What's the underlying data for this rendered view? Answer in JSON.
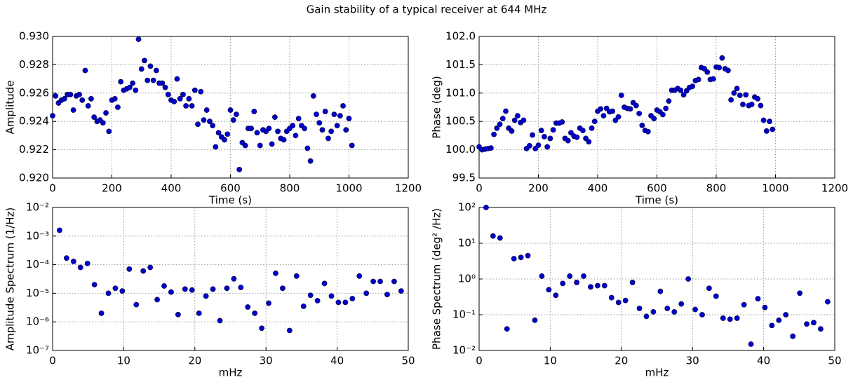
{
  "title": "Gain stability of a typical receiver at 644 MHz",
  "chart_data": [
    {
      "type": "scatter",
      "xlabel": "Time (s)",
      "ylabel": "Amplitude",
      "color": "#0000cc",
      "grid": true,
      "log_y": false,
      "xlim": [
        0,
        1200
      ],
      "xticks": [
        0,
        200,
        400,
        600,
        800,
        1000,
        1200
      ],
      "ylim": [
        0.92,
        0.93
      ],
      "yticks": [
        {
          "value": 0.92,
          "label": "0.920"
        },
        {
          "value": 0.922,
          "label": "0.922"
        },
        {
          "value": 0.924,
          "label": "0.924"
        },
        {
          "value": 0.926,
          "label": "0.926"
        },
        {
          "value": 0.928,
          "label": "0.928"
        },
        {
          "value": 0.93,
          "label": "0.930"
        }
      ],
      "x": [
        0,
        10,
        20,
        30,
        40,
        50,
        60,
        70,
        80,
        90,
        100,
        110,
        120,
        130,
        140,
        150,
        160,
        170,
        180,
        190,
        200,
        210,
        220,
        230,
        240,
        250,
        260,
        270,
        280,
        290,
        300,
        310,
        320,
        330,
        340,
        350,
        360,
        370,
        380,
        390,
        400,
        410,
        420,
        430,
        440,
        450,
        460,
        470,
        480,
        490,
        500,
        510,
        520,
        530,
        540,
        550,
        560,
        570,
        580,
        590,
        600,
        610,
        620,
        630,
        640,
        650,
        660,
        670,
        680,
        690,
        700,
        710,
        720,
        730,
        740,
        750,
        760,
        770,
        780,
        790,
        800,
        810,
        820,
        830,
        840,
        850,
        860,
        870,
        880,
        890,
        900,
        910,
        920,
        930,
        940,
        950,
        960,
        970,
        980,
        990,
        1000,
        1010
      ],
      "values": [
        0.9244,
        0.9258,
        0.9253,
        0.9255,
        0.9256,
        0.9259,
        0.9259,
        0.9248,
        0.9258,
        0.9259,
        0.9255,
        0.9276,
        0.9251,
        0.9256,
        0.9243,
        0.924,
        0.9241,
        0.9239,
        0.9246,
        0.9233,
        0.9255,
        0.9256,
        0.925,
        0.9268,
        0.9262,
        0.9263,
        0.9264,
        0.9267,
        0.9262,
        0.9298,
        0.9277,
        0.9283,
        0.9269,
        0.9279,
        0.9269,
        0.9276,
        0.9267,
        0.9267,
        0.9264,
        0.9259,
        0.9255,
        0.9254,
        0.927,
        0.9256,
        0.9259,
        0.9251,
        0.9256,
        0.9251,
        0.9262,
        0.9238,
        0.9261,
        0.9241,
        0.9248,
        0.924,
        0.9237,
        0.9222,
        0.9232,
        0.9229,
        0.9227,
        0.9231,
        0.9248,
        0.9241,
        0.9245,
        0.9206,
        0.9225,
        0.9223,
        0.9235,
        0.9235,
        0.9247,
        0.9232,
        0.9223,
        0.9234,
        0.9233,
        0.9235,
        0.9224,
        0.9243,
        0.9233,
        0.9228,
        0.9227,
        0.9233,
        0.9235,
        0.9237,
        0.923,
        0.9242,
        0.9237,
        0.9235,
        0.9221,
        0.9212,
        0.9258,
        0.9245,
        0.9239,
        0.9234,
        0.9247,
        0.9228,
        0.9233,
        0.9245,
        0.9237,
        0.9244,
        0.9251,
        0.9234,
        0.9242,
        0.9223
      ]
    },
    {
      "type": "scatter",
      "xlabel": "Time (s)",
      "ylabel": "Phase (deg)",
      "color": "#0000cc",
      "grid": true,
      "log_y": false,
      "xlim": [
        0,
        1200
      ],
      "xticks": [
        0,
        200,
        400,
        600,
        800,
        1000,
        1200
      ],
      "ylim": [
        99.5,
        102
      ],
      "yticks": [
        99.5,
        {
          "value": 100,
          "label": "100.0"
        },
        100.5,
        {
          "value": 101,
          "label": "101.0"
        },
        101.5,
        {
          "value": 102,
          "label": "102.0"
        }
      ],
      "x": [
        0,
        10,
        20,
        30,
        40,
        50,
        60,
        70,
        80,
        90,
        100,
        110,
        120,
        130,
        140,
        150,
        160,
        170,
        180,
        190,
        200,
        210,
        220,
        230,
        240,
        250,
        260,
        270,
        280,
        290,
        300,
        310,
        320,
        330,
        340,
        350,
        360,
        370,
        380,
        390,
        400,
        410,
        420,
        430,
        440,
        450,
        460,
        470,
        480,
        490,
        500,
        510,
        520,
        530,
        540,
        550,
        560,
        570,
        580,
        590,
        600,
        610,
        620,
        630,
        640,
        650,
        660,
        670,
        680,
        690,
        700,
        710,
        720,
        730,
        740,
        750,
        760,
        770,
        780,
        790,
        800,
        810,
        820,
        830,
        840,
        850,
        860,
        870,
        880,
        890,
        900,
        910,
        920,
        930,
        940,
        950,
        960,
        970,
        980,
        990
      ],
      "values": [
        100.05,
        100.0,
        100.01,
        100.02,
        100.03,
        100.27,
        100.38,
        100.45,
        100.55,
        100.68,
        100.38,
        100.33,
        100.52,
        100.6,
        100.48,
        100.52,
        100.02,
        100.07,
        100.26,
        100.02,
        100.08,
        100.34,
        100.23,
        100.05,
        100.2,
        100.35,
        100.47,
        100.47,
        100.49,
        100.2,
        100.16,
        100.3,
        100.24,
        100.22,
        100.38,
        100.34,
        100.2,
        100.14,
        100.38,
        100.5,
        100.68,
        100.72,
        100.6,
        100.73,
        100.67,
        100.68,
        100.52,
        100.58,
        100.96,
        100.75,
        100.73,
        100.72,
        100.83,
        100.78,
        100.64,
        100.43,
        100.34,
        100.32,
        100.6,
        100.55,
        100.7,
        100.67,
        100.62,
        100.73,
        100.86,
        101.05,
        101.05,
        101.08,
        101.05,
        100.97,
        101.04,
        101.1,
        101.12,
        101.22,
        101.24,
        101.45,
        101.43,
        101.37,
        101.24,
        101.25,
        101.46,
        101.45,
        101.62,
        101.43,
        101.4,
        100.88,
        101.0,
        101.08,
        100.96,
        100.8,
        100.97,
        100.78,
        100.8,
        100.93,
        100.9,
        100.78,
        100.52,
        100.33,
        100.5,
        100.36
      ]
    },
    {
      "type": "scatter",
      "xlabel": "mHz",
      "ylabel": "Amplitude Spectrum (1/Hz)",
      "color": "#0000cc",
      "grid": true,
      "log_y": true,
      "xlim": [
        0,
        50
      ],
      "xticks": [
        0,
        10,
        20,
        30,
        40,
        50
      ],
      "ylim": [
        1e-07,
        0.01
      ],
      "yticks": [
        {
          "value": 1e-07,
          "label": "10⁻⁷"
        },
        {
          "value": 1e-06,
          "label": "10⁻⁶"
        },
        {
          "value": 1e-05,
          "label": "10⁻⁵"
        },
        {
          "value": 0.0001,
          "label": "10⁻⁴"
        },
        {
          "value": 0.001,
          "label": "10⁻³"
        },
        {
          "value": 0.01,
          "label": "10⁻²"
        }
      ],
      "x": [
        0.98,
        1.96,
        2.94,
        3.92,
        4.9,
        5.88,
        6.86,
        7.84,
        8.82,
        9.8,
        10.78,
        11.76,
        12.74,
        13.72,
        14.7,
        15.68,
        16.66,
        17.64,
        18.62,
        19.6,
        20.58,
        21.56,
        22.54,
        23.52,
        24.5,
        25.48,
        26.46,
        27.44,
        28.42,
        29.4,
        30.38,
        31.36,
        32.34,
        33.32,
        34.3,
        35.28,
        36.26,
        37.24,
        38.22,
        39.2,
        40.18,
        41.16,
        42.14,
        43.12,
        44.1,
        45.08,
        46.06,
        47.04,
        48.02,
        49.0
      ],
      "values": [
        0.0016,
        0.00017,
        0.00013,
        8e-05,
        0.00011,
        2e-05,
        2e-06,
        1e-05,
        1.5e-05,
        1.2e-05,
        7e-05,
        4e-06,
        6e-05,
        8e-05,
        6e-06,
        1.8e-05,
        1.1e-05,
        1.8e-06,
        1.4e-05,
        1.3e-05,
        2e-06,
        8e-06,
        1.4e-05,
        1.1e-06,
        1.5e-05,
        3.2e-05,
        1.6e-05,
        3.3e-06,
        2e-06,
        6e-07,
        4.5e-06,
        5e-05,
        1.5e-05,
        5e-07,
        4e-05,
        3.5e-06,
        8.5e-06,
        5.5e-06,
        2.2e-05,
        8e-06,
        4.8e-06,
        4.8e-06,
        6.5e-06,
        4e-05,
        1e-05,
        2.6e-05,
        2.6e-05,
        9e-06,
        2.6e-05,
        1.2e-05
      ]
    },
    {
      "type": "scatter",
      "xlabel": "mHz",
      "ylabel": "Phase Spectrum (deg² /Hz)",
      "color": "#0000cc",
      "grid": true,
      "log_y": true,
      "xlim": [
        0,
        50
      ],
      "xticks": [
        0,
        10,
        20,
        30,
        40,
        50
      ],
      "ylim": [
        0.01,
        100
      ],
      "yticks": [
        {
          "value": 0.01,
          "label": "10⁻²"
        },
        {
          "value": 0.1,
          "label": "10⁻¹"
        },
        {
          "value": 1,
          "label": "10⁰"
        },
        {
          "value": 10,
          "label": "10¹"
        },
        {
          "value": 100,
          "label": "10²"
        }
      ],
      "x": [
        0.98,
        1.96,
        2.94,
        3.92,
        4.9,
        5.88,
        6.86,
        7.84,
        8.82,
        9.8,
        10.78,
        11.76,
        12.74,
        13.72,
        14.7,
        15.68,
        16.66,
        17.64,
        18.62,
        19.6,
        20.58,
        21.56,
        22.54,
        23.52,
        24.5,
        25.48,
        26.46,
        27.44,
        28.42,
        29.4,
        30.38,
        31.36,
        32.34,
        33.32,
        34.3,
        35.28,
        36.26,
        37.24,
        38.22,
        39.2,
        40.18,
        41.16,
        42.14,
        43.12,
        44.1,
        45.08,
        46.06,
        47.04,
        48.02,
        49.0
      ],
      "values": [
        100,
        16,
        14,
        0.04,
        3.7,
        4,
        4.5,
        0.07,
        1.2,
        0.5,
        0.35,
        0.75,
        1.2,
        0.8,
        1.2,
        0.6,
        0.65,
        0.65,
        0.3,
        0.22,
        0.25,
        0.8,
        0.15,
        0.09,
        0.12,
        0.45,
        0.15,
        0.12,
        0.2,
        1.0,
        0.14,
        0.1,
        0.55,
        0.33,
        0.08,
        0.075,
        0.08,
        0.19,
        0.015,
        0.28,
        0.16,
        0.05,
        0.07,
        0.1,
        0.025,
        0.4,
        0.055,
        0.06,
        0.04,
        0.23
      ]
    }
  ]
}
